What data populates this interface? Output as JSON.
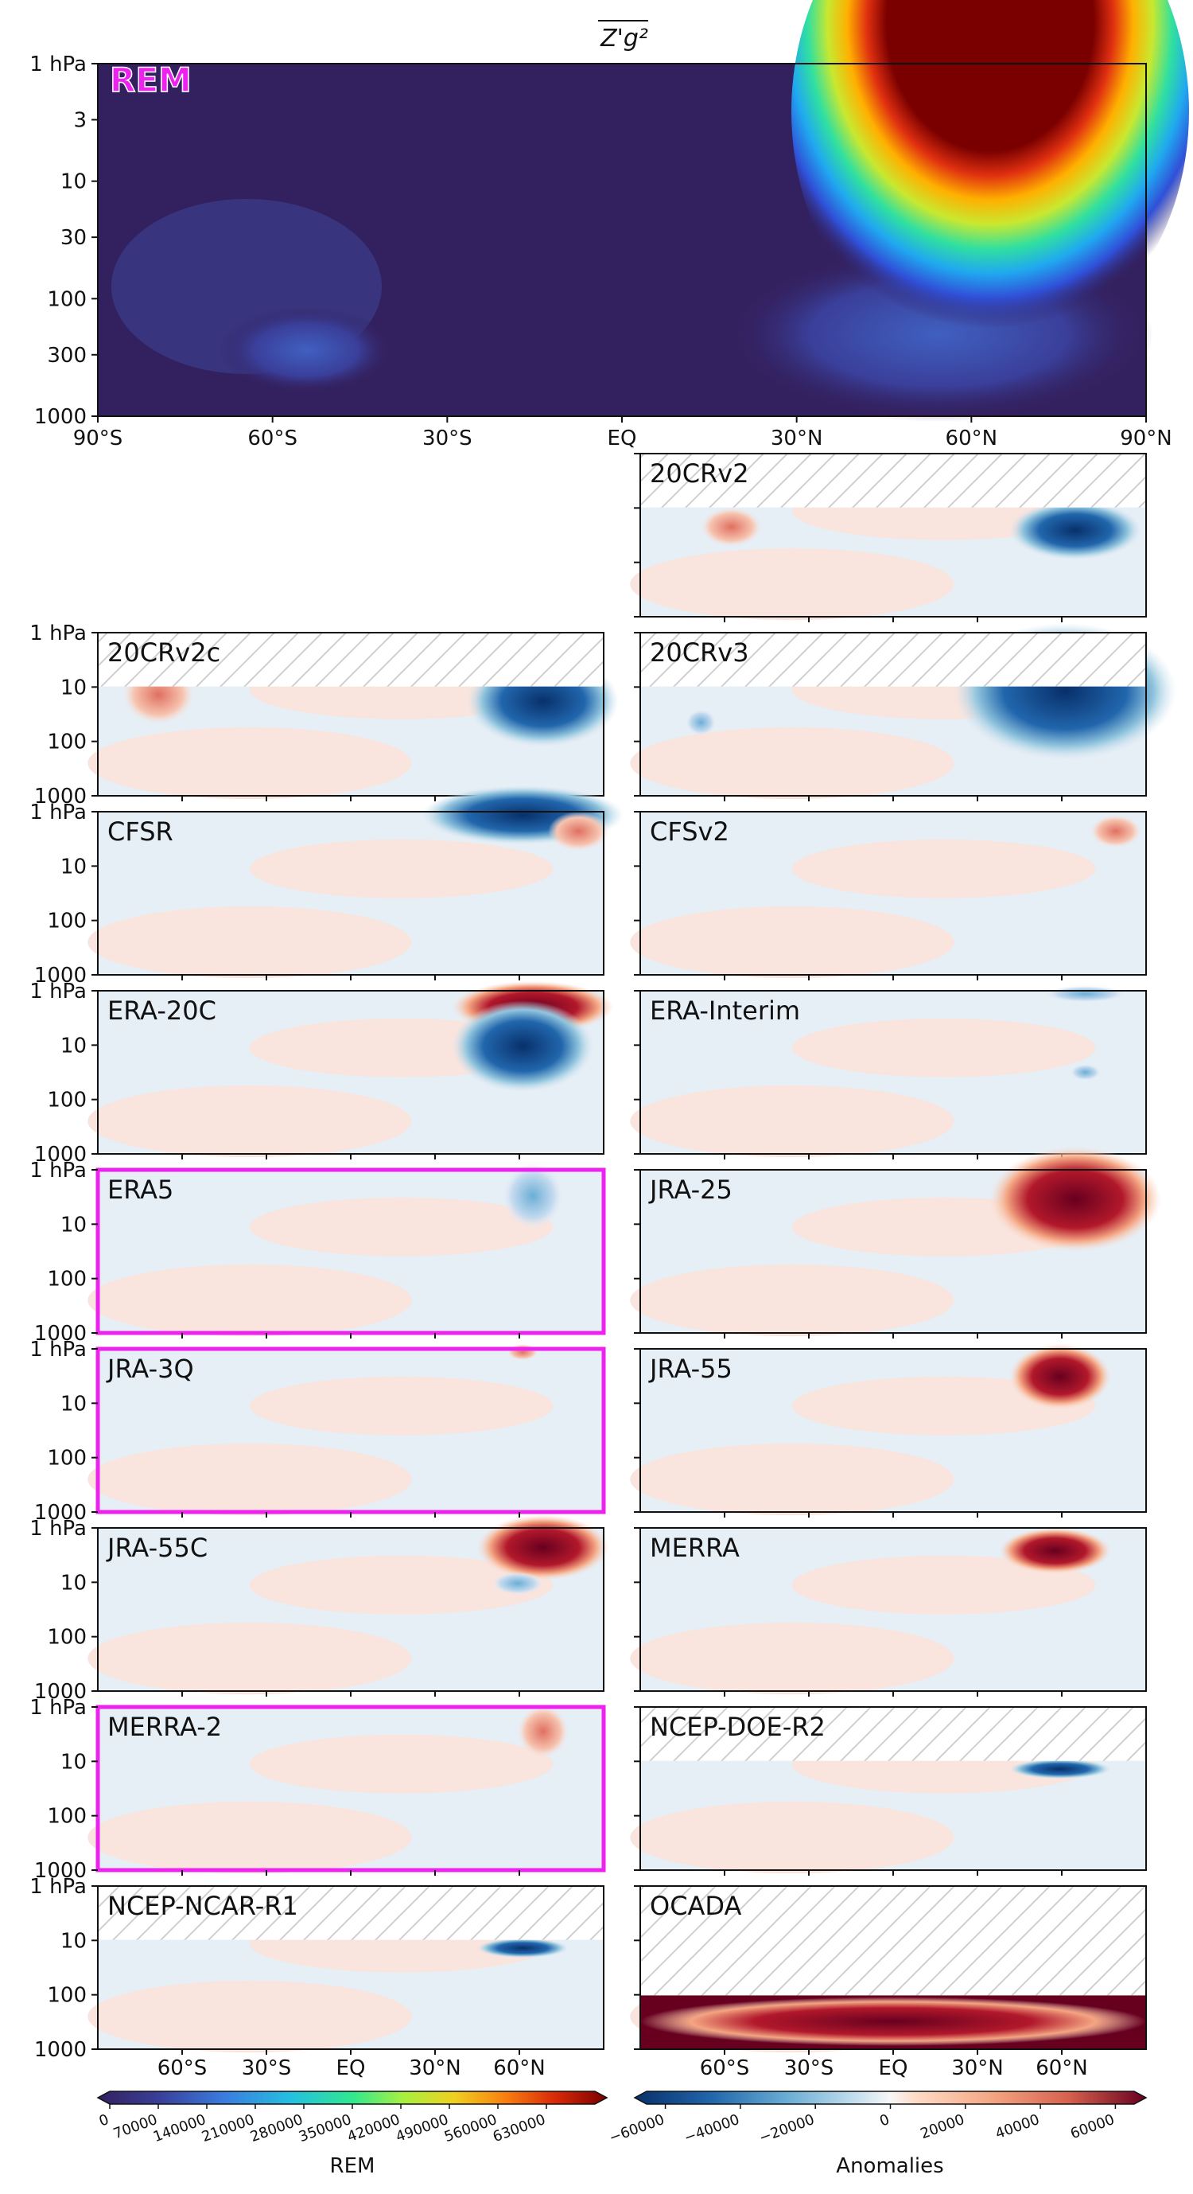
{
  "chart_data": {
    "type": "contour",
    "title": "Z'g²",
    "main_panel": {
      "label": "REM",
      "xticks": [
        "90°S",
        "60°S",
        "30°S",
        "EQ",
        "30°N",
        "60°N",
        "90°N"
      ],
      "yticks": [
        "1 hPa",
        "3",
        "10",
        "30",
        "100",
        "300",
        "1000"
      ],
      "ylog": true,
      "xlim": [
        -90,
        90
      ],
      "ylim": [
        1000,
        1
      ]
    },
    "small_yticks": [
      "1 hPa",
      "10",
      "100",
      "1000"
    ],
    "panels": [
      {
        "name": "20CRv2",
        "highlighted": false
      },
      {
        "name": "20CRv2c",
        "highlighted": false
      },
      {
        "name": "20CRv3",
        "highlighted": false
      },
      {
        "name": "CFSR",
        "highlighted": false
      },
      {
        "name": "CFSv2",
        "highlighted": false
      },
      {
        "name": "ERA-20C",
        "highlighted": false
      },
      {
        "name": "ERA-Interim",
        "highlighted": false
      },
      {
        "name": "ERA5",
        "highlighted": true
      },
      {
        "name": "JRA-25",
        "highlighted": false
      },
      {
        "name": "JRA-3Q",
        "highlighted": true
      },
      {
        "name": "JRA-55",
        "highlighted": false
      },
      {
        "name": "JRA-55C",
        "highlighted": false
      },
      {
        "name": "MERRA",
        "highlighted": false
      },
      {
        "name": "MERRA-2",
        "highlighted": true
      },
      {
        "name": "NCEP-DOE-R2",
        "highlighted": false
      },
      {
        "name": "NCEP-NCAR-R1",
        "highlighted": false
      },
      {
        "name": "OCADA",
        "highlighted": false
      }
    ],
    "bottom_xticks": [
      "60°S",
      "30°S",
      "EQ",
      "30°N",
      "60°N"
    ],
    "colorbar_rem": {
      "label": "REM",
      "ticks": [
        "0",
        "70000",
        "140000",
        "210000",
        "280000",
        "350000",
        "420000",
        "490000",
        "560000",
        "630000"
      ],
      "range": [
        0,
        700000
      ]
    },
    "colorbar_anom": {
      "label": "Anomalies",
      "ticks": [
        "−60000",
        "−40000",
        "−20000",
        "0",
        "20000",
        "40000",
        "60000"
      ],
      "range": [
        -65000,
        65000
      ]
    }
  },
  "colors": {
    "highlight_frame": "#ee22ee",
    "rem_background": "#33205e",
    "anom_positive": "#f9e4de",
    "anom_negative": "#e6eef6"
  }
}
